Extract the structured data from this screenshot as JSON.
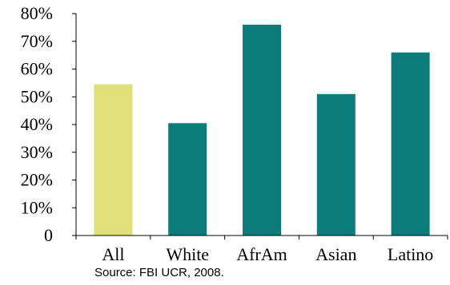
{
  "chart_data": {
    "type": "bar",
    "title": "",
    "xlabel": "",
    "ylabel": "",
    "categories": [
      "All",
      "White",
      "AfrAm",
      "Asian",
      "Latino"
    ],
    "values": [
      54.5,
      40.5,
      76,
      51,
      66
    ],
    "bar_colors": [
      "#dfe07a",
      "#0c7c7b",
      "#0c7c7b",
      "#0c7c7b",
      "#0c7c7b"
    ],
    "ylim": [
      0,
      80
    ],
    "y_ticks": [
      0,
      10,
      20,
      30,
      40,
      50,
      60,
      70,
      80
    ],
    "y_tick_labels": [
      "0",
      "10%",
      "20%",
      "30%",
      "40%",
      "50%",
      "60%",
      "70%",
      "80%"
    ],
    "grid": false,
    "legend": "none"
  },
  "source_note": "Source: FBI UCR, 2008."
}
